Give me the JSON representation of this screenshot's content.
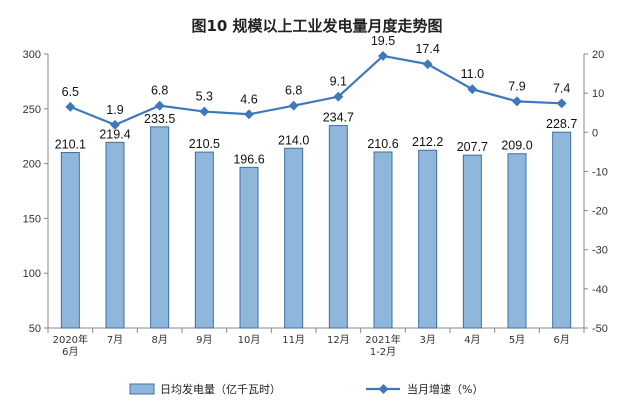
{
  "chart_data": {
    "type": "bar+line",
    "title": "图10  规模以上工业发电量月度走势图",
    "categories": [
      [
        "2020年",
        "6月"
      ],
      [
        "7月"
      ],
      [
        "8月"
      ],
      [
        "9月"
      ],
      [
        "10月"
      ],
      [
        "11月"
      ],
      [
        "12月"
      ],
      [
        "2021年",
        "1-2月"
      ],
      [
        "3月"
      ],
      [
        "4月"
      ],
      [
        "5月"
      ],
      [
        "6月"
      ]
    ],
    "series": [
      {
        "name": "日均发电量（亿千瓦时）",
        "type": "bar",
        "axis": "left",
        "values": [
          210.1,
          219.4,
          233.5,
          210.5,
          196.6,
          214.0,
          234.7,
          210.6,
          212.2,
          207.7,
          209.0,
          228.7
        ],
        "labels": [
          "210.1",
          "219.4",
          "233.5",
          "210.5",
          "196.6",
          "214.0",
          "234.7",
          "210.6",
          "212.2",
          "207.7",
          "209.0",
          "228.7"
        ]
      },
      {
        "name": "当月增速（%）",
        "type": "line",
        "axis": "right",
        "values": [
          6.5,
          1.9,
          6.8,
          5.3,
          4.6,
          6.8,
          9.1,
          19.5,
          17.4,
          11.0,
          7.9,
          7.4
        ],
        "labels": [
          "6.5",
          "1.9",
          "6.8",
          "5.3",
          "4.6",
          "6.8",
          "9.1",
          "19.5",
          "17.4",
          "11.0",
          "7.9",
          "7.4"
        ]
      }
    ],
    "left_axis": {
      "min": 50,
      "max": 300,
      "ticks": [
        "50",
        "100",
        "150",
        "200",
        "250",
        "300"
      ]
    },
    "right_axis": {
      "min": -50,
      "max": 20,
      "ticks": [
        "-50",
        "-40",
        "-30",
        "-20",
        "-10",
        "0",
        "10",
        "20"
      ]
    },
    "grid": false,
    "legend_position": "bottom",
    "colors": {
      "bar_fill": "#8fb7dc",
      "bar_stroke": "#3d6fa3",
      "line": "#3d78bf"
    }
  }
}
